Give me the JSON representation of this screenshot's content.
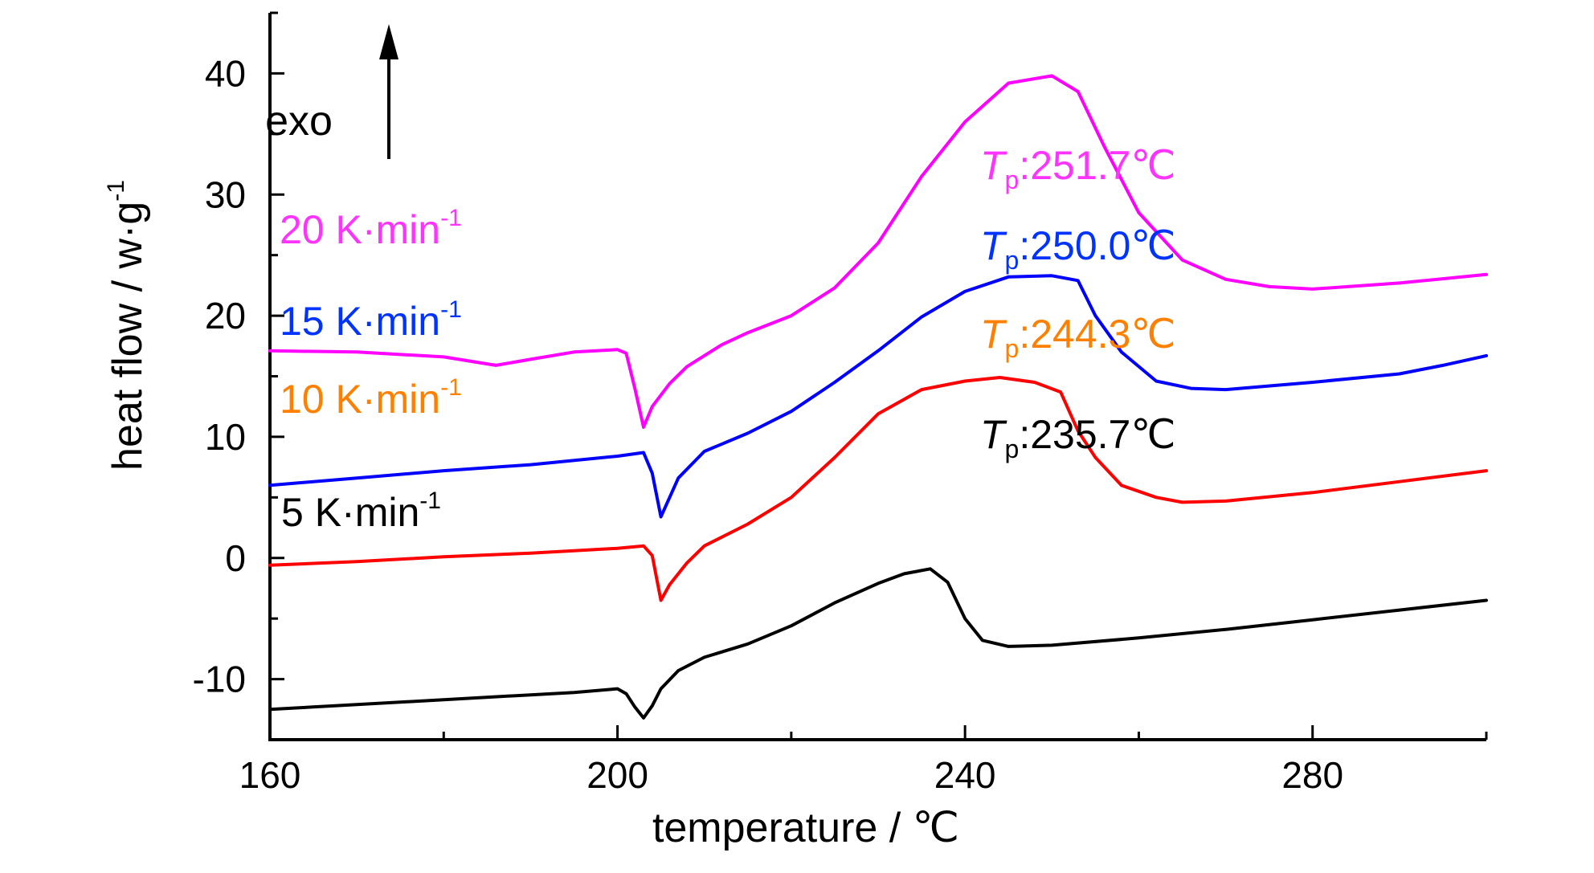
{
  "chart_data": {
    "type": "line",
    "xlabel": "temperature / ℃",
    "ylabel": "heat flow / w·g",
    "ylabel_sup": "-1",
    "xlim": [
      160,
      300
    ],
    "ylim": [
      -15,
      45
    ],
    "xticks": [
      160,
      200,
      240,
      280
    ],
    "yticks": [
      -10,
      0,
      10,
      20,
      30,
      40
    ],
    "annotation": "exo",
    "series": [
      {
        "name": "5 K·min",
        "rate_sup": "-1",
        "color": "#000000",
        "peak_prefix": "T",
        "peak_sub": "p",
        "peak_text": ":235.7℃",
        "x": [
          160,
          170,
          180,
          190,
          195,
          200,
          201,
          202,
          203,
          204,
          205,
          207,
          210,
          215,
          220,
          225,
          230,
          233,
          236,
          238,
          240,
          242,
          245,
          250,
          260,
          270,
          280,
          290,
          300
        ],
        "y": [
          -12.5,
          -12.1,
          -11.7,
          -11.3,
          -11.1,
          -10.8,
          -11.2,
          -12.3,
          -13.2,
          -12.2,
          -10.8,
          -9.3,
          -8.2,
          -7.1,
          -5.6,
          -3.7,
          -2.1,
          -1.3,
          -0.9,
          -2,
          -5,
          -6.8,
          -7.3,
          -7.2,
          -6.6,
          -5.9,
          -5.1,
          -4.3,
          -3.5
        ],
        "label_pos": [
          350,
          655
        ],
        "peak_pos": [
          1220,
          558
        ]
      },
      {
        "name": "10 K·min",
        "rate_sup": "-1",
        "color": "#ff0000",
        "label_color": "#ff8000",
        "peak_prefix": "T",
        "peak_sub": "p",
        "peak_text": ":244.3℃",
        "x": [
          160,
          170,
          180,
          190,
          200,
          203,
          204,
          205,
          206,
          208,
          210,
          215,
          220,
          225,
          230,
          235,
          240,
          244,
          248,
          251,
          253,
          255,
          258,
          262,
          265,
          270,
          280,
          290,
          300
        ],
        "y": [
          -0.6,
          -0.3,
          0.1,
          0.4,
          0.8,
          1.0,
          0.2,
          -3.5,
          -2.2,
          -0.4,
          1.0,
          2.8,
          5.0,
          8.3,
          11.9,
          13.9,
          14.6,
          14.9,
          14.5,
          13.7,
          10.5,
          8.3,
          6.0,
          5.0,
          4.6,
          4.7,
          5.4,
          6.3,
          7.2
        ],
        "label_pos": [
          348,
          514
        ],
        "peak_pos": [
          1220,
          433
        ]
      },
      {
        "name": "15 K·min",
        "rate_sup": "-1",
        "color": "#0000ff",
        "label_color": "#0033ff",
        "peak_prefix": "T",
        "peak_sub": "p",
        "peak_text": ":250.0℃",
        "x": [
          160,
          170,
          180,
          190,
          200,
          203,
          204,
          205,
          206,
          207,
          210,
          215,
          220,
          225,
          230,
          235,
          240,
          245,
          250,
          253,
          255,
          258,
          262,
          266,
          270,
          280,
          290,
          295,
          300
        ],
        "y": [
          6.0,
          6.6,
          7.2,
          7.7,
          8.4,
          8.7,
          7.0,
          3.4,
          5.0,
          6.6,
          8.8,
          10.3,
          12.1,
          14.5,
          17.1,
          19.9,
          22.0,
          23.2,
          23.3,
          22.9,
          20.0,
          17.0,
          14.6,
          14.0,
          13.9,
          14.5,
          15.2,
          15.9,
          16.7
        ],
        "label_pos": [
          348,
          417
        ],
        "peak_pos": [
          1220,
          323
        ]
      },
      {
        "name": "20 K·min",
        "rate_sup": "-1",
        "color": "#ff00ff",
        "label_color": "#ff33ff",
        "peak_prefix": "T",
        "peak_sub": "p",
        "peak_text": ":251.7℃",
        "x": [
          160,
          170,
          180,
          186,
          190,
          195,
          200,
          201,
          202,
          203,
          204,
          206,
          208,
          212,
          215,
          220,
          225,
          230,
          235,
          240,
          245,
          250,
          253,
          256,
          260,
          265,
          270,
          275,
          280,
          290,
          300
        ],
        "y": [
          17.1,
          17.0,
          16.6,
          15.9,
          16.4,
          17.0,
          17.2,
          16.9,
          14.0,
          10.8,
          12.5,
          14.4,
          15.8,
          17.6,
          18.6,
          20.0,
          22.3,
          26.0,
          31.5,
          36.0,
          39.2,
          39.8,
          38.5,
          34.0,
          28.5,
          24.6,
          23.0,
          22.4,
          22.2,
          22.7,
          23.4
        ],
        "label_pos": [
          348,
          303
        ],
        "peak_pos": [
          1220,
          223
        ]
      }
    ]
  }
}
